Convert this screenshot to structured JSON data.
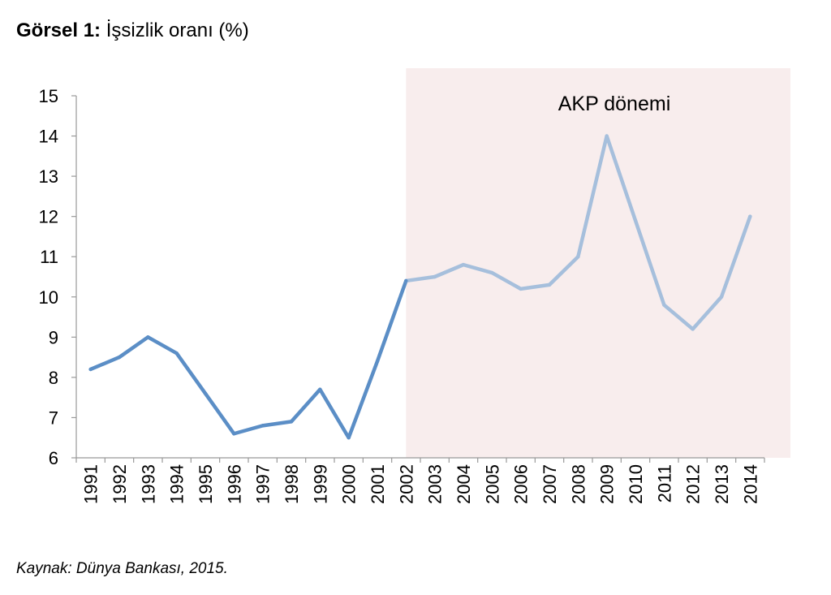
{
  "title_prefix": "Görsel 1:",
  "title_text": "İşsizlik oranı (%)",
  "source": "Kaynak: Dünya Bankası, 2015.",
  "chart_data": {
    "type": "line",
    "title": "İşsizlik oranı (%)",
    "xlabel": "",
    "ylabel": "",
    "ylim": [
      6,
      15
    ],
    "yticks": [
      6,
      7,
      8,
      9,
      10,
      11,
      12,
      13,
      14,
      15
    ],
    "grid": false,
    "categories": [
      "1991",
      "1992",
      "1993",
      "1994",
      "1995",
      "1996",
      "1997",
      "1998",
      "1999",
      "2000",
      "2001",
      "2002",
      "2003",
      "2004",
      "2005",
      "2006",
      "2007",
      "2008",
      "2009",
      "2010",
      "2011",
      "2012",
      "2013",
      "2014"
    ],
    "series": [
      {
        "name": "İşsizlik oranı",
        "values": [
          8.2,
          8.5,
          9.0,
          8.6,
          7.6,
          6.6,
          6.8,
          6.9,
          7.7,
          6.5,
          8.4,
          10.4,
          10.5,
          10.8,
          10.6,
          10.2,
          10.3,
          11.0,
          14.0,
          11.9,
          9.8,
          9.2,
          10.0,
          12.0
        ],
        "color_before": "#5b8ec6",
        "color_after": "#a6bfdc"
      }
    ],
    "shaded_region": {
      "from": "2002",
      "to": "2014",
      "label": "AKP dönemi",
      "color": "#f8eded"
    }
  }
}
